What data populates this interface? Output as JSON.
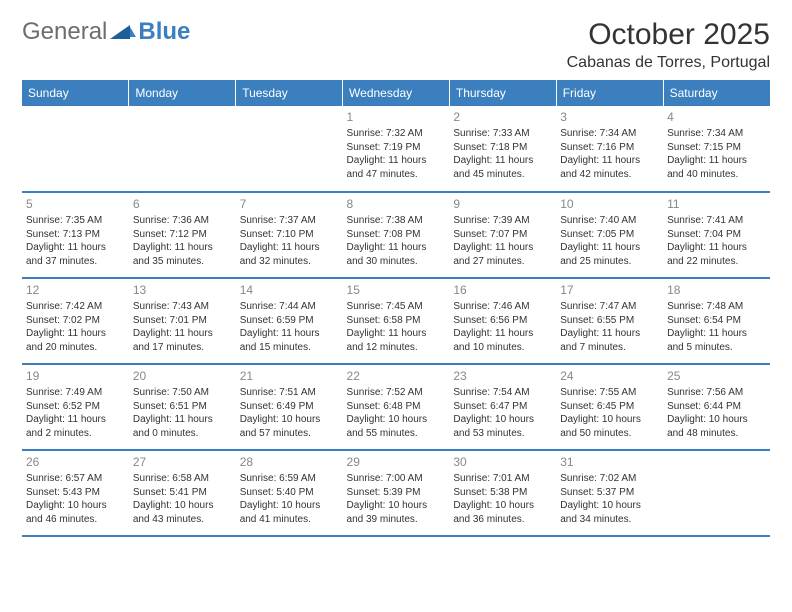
{
  "logo": {
    "text1": "General",
    "text2": "Blue",
    "text1_color": "#6d6d6d",
    "text2_color": "#3b7fbf"
  },
  "title": "October 2025",
  "location": "Cabanas de Torres, Portugal",
  "colors": {
    "header_bg": "#3b7fbf",
    "header_fg": "#ffffff",
    "grid_border": "#3b7fbf",
    "daynum": "#888888",
    "text": "#333333"
  },
  "day_headers": [
    "Sunday",
    "Monday",
    "Tuesday",
    "Wednesday",
    "Thursday",
    "Friday",
    "Saturday"
  ],
  "weeks": [
    [
      null,
      null,
      null,
      {
        "n": "1",
        "sr": "Sunrise: 7:32 AM",
        "ss": "Sunset: 7:19 PM",
        "dl1": "Daylight: 11 hours",
        "dl2": "and 47 minutes."
      },
      {
        "n": "2",
        "sr": "Sunrise: 7:33 AM",
        "ss": "Sunset: 7:18 PM",
        "dl1": "Daylight: 11 hours",
        "dl2": "and 45 minutes."
      },
      {
        "n": "3",
        "sr": "Sunrise: 7:34 AM",
        "ss": "Sunset: 7:16 PM",
        "dl1": "Daylight: 11 hours",
        "dl2": "and 42 minutes."
      },
      {
        "n": "4",
        "sr": "Sunrise: 7:34 AM",
        "ss": "Sunset: 7:15 PM",
        "dl1": "Daylight: 11 hours",
        "dl2": "and 40 minutes."
      }
    ],
    [
      {
        "n": "5",
        "sr": "Sunrise: 7:35 AM",
        "ss": "Sunset: 7:13 PM",
        "dl1": "Daylight: 11 hours",
        "dl2": "and 37 minutes."
      },
      {
        "n": "6",
        "sr": "Sunrise: 7:36 AM",
        "ss": "Sunset: 7:12 PM",
        "dl1": "Daylight: 11 hours",
        "dl2": "and 35 minutes."
      },
      {
        "n": "7",
        "sr": "Sunrise: 7:37 AM",
        "ss": "Sunset: 7:10 PM",
        "dl1": "Daylight: 11 hours",
        "dl2": "and 32 minutes."
      },
      {
        "n": "8",
        "sr": "Sunrise: 7:38 AM",
        "ss": "Sunset: 7:08 PM",
        "dl1": "Daylight: 11 hours",
        "dl2": "and 30 minutes."
      },
      {
        "n": "9",
        "sr": "Sunrise: 7:39 AM",
        "ss": "Sunset: 7:07 PM",
        "dl1": "Daylight: 11 hours",
        "dl2": "and 27 minutes."
      },
      {
        "n": "10",
        "sr": "Sunrise: 7:40 AM",
        "ss": "Sunset: 7:05 PM",
        "dl1": "Daylight: 11 hours",
        "dl2": "and 25 minutes."
      },
      {
        "n": "11",
        "sr": "Sunrise: 7:41 AM",
        "ss": "Sunset: 7:04 PM",
        "dl1": "Daylight: 11 hours",
        "dl2": "and 22 minutes."
      }
    ],
    [
      {
        "n": "12",
        "sr": "Sunrise: 7:42 AM",
        "ss": "Sunset: 7:02 PM",
        "dl1": "Daylight: 11 hours",
        "dl2": "and 20 minutes."
      },
      {
        "n": "13",
        "sr": "Sunrise: 7:43 AM",
        "ss": "Sunset: 7:01 PM",
        "dl1": "Daylight: 11 hours",
        "dl2": "and 17 minutes."
      },
      {
        "n": "14",
        "sr": "Sunrise: 7:44 AM",
        "ss": "Sunset: 6:59 PM",
        "dl1": "Daylight: 11 hours",
        "dl2": "and 15 minutes."
      },
      {
        "n": "15",
        "sr": "Sunrise: 7:45 AM",
        "ss": "Sunset: 6:58 PM",
        "dl1": "Daylight: 11 hours",
        "dl2": "and 12 minutes."
      },
      {
        "n": "16",
        "sr": "Sunrise: 7:46 AM",
        "ss": "Sunset: 6:56 PM",
        "dl1": "Daylight: 11 hours",
        "dl2": "and 10 minutes."
      },
      {
        "n": "17",
        "sr": "Sunrise: 7:47 AM",
        "ss": "Sunset: 6:55 PM",
        "dl1": "Daylight: 11 hours",
        "dl2": "and 7 minutes."
      },
      {
        "n": "18",
        "sr": "Sunrise: 7:48 AM",
        "ss": "Sunset: 6:54 PM",
        "dl1": "Daylight: 11 hours",
        "dl2": "and 5 minutes."
      }
    ],
    [
      {
        "n": "19",
        "sr": "Sunrise: 7:49 AM",
        "ss": "Sunset: 6:52 PM",
        "dl1": "Daylight: 11 hours",
        "dl2": "and 2 minutes."
      },
      {
        "n": "20",
        "sr": "Sunrise: 7:50 AM",
        "ss": "Sunset: 6:51 PM",
        "dl1": "Daylight: 11 hours",
        "dl2": "and 0 minutes."
      },
      {
        "n": "21",
        "sr": "Sunrise: 7:51 AM",
        "ss": "Sunset: 6:49 PM",
        "dl1": "Daylight: 10 hours",
        "dl2": "and 57 minutes."
      },
      {
        "n": "22",
        "sr": "Sunrise: 7:52 AM",
        "ss": "Sunset: 6:48 PM",
        "dl1": "Daylight: 10 hours",
        "dl2": "and 55 minutes."
      },
      {
        "n": "23",
        "sr": "Sunrise: 7:54 AM",
        "ss": "Sunset: 6:47 PM",
        "dl1": "Daylight: 10 hours",
        "dl2": "and 53 minutes."
      },
      {
        "n": "24",
        "sr": "Sunrise: 7:55 AM",
        "ss": "Sunset: 6:45 PM",
        "dl1": "Daylight: 10 hours",
        "dl2": "and 50 minutes."
      },
      {
        "n": "25",
        "sr": "Sunrise: 7:56 AM",
        "ss": "Sunset: 6:44 PM",
        "dl1": "Daylight: 10 hours",
        "dl2": "and 48 minutes."
      }
    ],
    [
      {
        "n": "26",
        "sr": "Sunrise: 6:57 AM",
        "ss": "Sunset: 5:43 PM",
        "dl1": "Daylight: 10 hours",
        "dl2": "and 46 minutes."
      },
      {
        "n": "27",
        "sr": "Sunrise: 6:58 AM",
        "ss": "Sunset: 5:41 PM",
        "dl1": "Daylight: 10 hours",
        "dl2": "and 43 minutes."
      },
      {
        "n": "28",
        "sr": "Sunrise: 6:59 AM",
        "ss": "Sunset: 5:40 PM",
        "dl1": "Daylight: 10 hours",
        "dl2": "and 41 minutes."
      },
      {
        "n": "29",
        "sr": "Sunrise: 7:00 AM",
        "ss": "Sunset: 5:39 PM",
        "dl1": "Daylight: 10 hours",
        "dl2": "and 39 minutes."
      },
      {
        "n": "30",
        "sr": "Sunrise: 7:01 AM",
        "ss": "Sunset: 5:38 PM",
        "dl1": "Daylight: 10 hours",
        "dl2": "and 36 minutes."
      },
      {
        "n": "31",
        "sr": "Sunrise: 7:02 AM",
        "ss": "Sunset: 5:37 PM",
        "dl1": "Daylight: 10 hours",
        "dl2": "and 34 minutes."
      },
      null
    ]
  ]
}
